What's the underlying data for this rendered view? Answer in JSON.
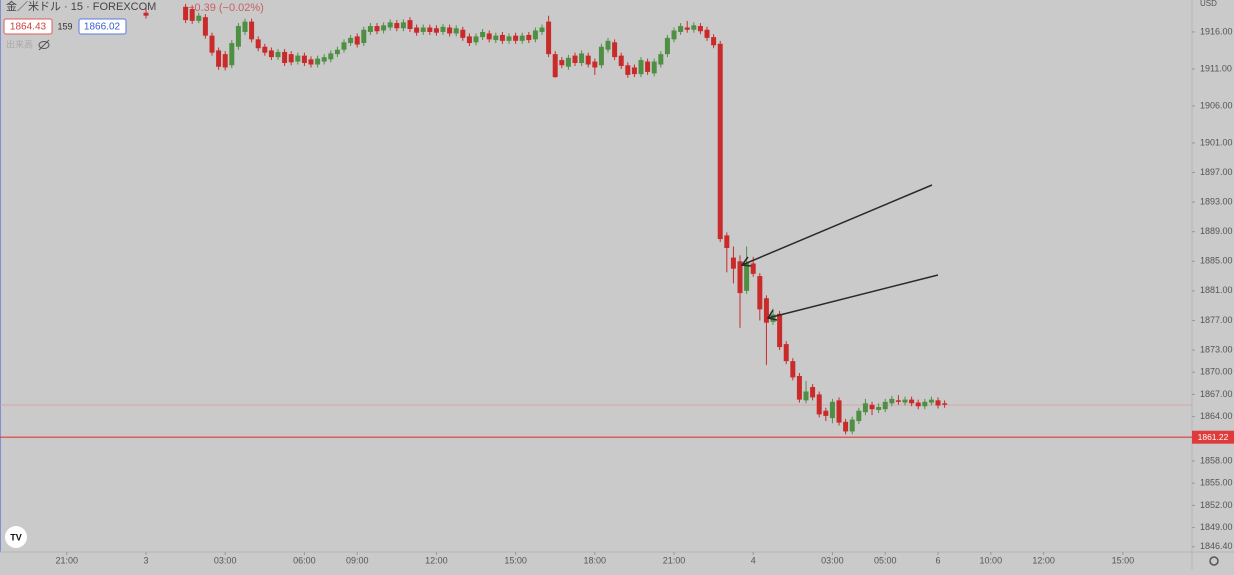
{
  "chart_data": {
    "type": "candlestick",
    "title": "金／米ドル · 15 · FOREXCOM",
    "change": "−0.39 (−0.02%)",
    "bid": 1864.43,
    "spread": 159,
    "ask": 1866.02,
    "indicator": "出来高",
    "currency": "USD",
    "current_price": 1861.22,
    "up_color": "#4f8f43",
    "down_color": "#c92a2a",
    "xlim": [
      -22.12,
      158.48
    ],
    "ylim": [
      1845.7,
      1920.32
    ],
    "xticks": [
      {
        "value": -12,
        "label": "21:00"
      },
      {
        "value": 0,
        "label": "3"
      },
      {
        "value": 12,
        "label": "03:00"
      },
      {
        "value": 24,
        "label": "06:00"
      },
      {
        "value": 32,
        "label": "09:00"
      },
      {
        "value": 44,
        "label": "12:00"
      },
      {
        "value": 56,
        "label": "15:00"
      },
      {
        "value": 68,
        "label": "18:00"
      },
      {
        "value": 80,
        "label": "21:00"
      },
      {
        "value": 92,
        "label": "4"
      },
      {
        "value": 104,
        "label": "03:00"
      },
      {
        "value": 112,
        "label": "05:00"
      },
      {
        "value": 120,
        "label": "6"
      },
      {
        "value": 128,
        "label": "10:00"
      },
      {
        "value": 136,
        "label": "12:00"
      },
      {
        "value": 148,
        "label": "15:00"
      }
    ],
    "yticks": [
      {
        "value": 1916,
        "label": "1916.00"
      },
      {
        "value": 1911,
        "label": "1911.00"
      },
      {
        "value": 1906,
        "label": "1906.00"
      },
      {
        "value": 1901,
        "label": "1901.00"
      },
      {
        "value": 1897,
        "label": "1897.00"
      },
      {
        "value": 1893,
        "label": "1893.00"
      },
      {
        "value": 1889,
        "label": "1889.00"
      },
      {
        "value": 1885,
        "label": "1885.00"
      },
      {
        "value": 1881,
        "label": "1881.00"
      },
      {
        "value": 1877,
        "label": "1877.00"
      },
      {
        "value": 1873,
        "label": "1873.00"
      },
      {
        "value": 1870,
        "label": "1870.00"
      },
      {
        "value": 1867,
        "label": "1867.00"
      },
      {
        "value": 1864,
        "label": "1864.00"
      },
      {
        "value": 1858,
        "label": "1858.00"
      },
      {
        "value": 1855,
        "label": "1855.00"
      },
      {
        "value": 1852,
        "label": "1852.00"
      },
      {
        "value": 1849,
        "label": "1849.00"
      },
      {
        "value": 1846.4,
        "label": "1846.40"
      }
    ],
    "candles": [
      [
        0,
        1918.6,
        1919.3,
        1917.8,
        1918.2
      ],
      [
        6,
        1919.4,
        1919.8,
        1917.2,
        1917.6
      ],
      [
        7,
        1919.1,
        1919.6,
        1917.1,
        1917.5
      ],
      [
        8,
        1917.5,
        1918.6,
        1917.2,
        1918.2
      ],
      [
        9,
        1918,
        1918.4,
        1915.1,
        1915.5
      ],
      [
        10,
        1915.5,
        1915.9,
        1912.8,
        1913.2
      ],
      [
        11,
        1913.5,
        1913.9,
        1910.9,
        1911.3
      ],
      [
        12,
        1913,
        1913.4,
        1910.8,
        1911.2
      ],
      [
        13,
        1911.5,
        1914.9,
        1911.1,
        1914.5
      ],
      [
        14,
        1914,
        1917.2,
        1913.6,
        1916.8
      ],
      [
        15,
        1916,
        1917.8,
        1915.6,
        1917.4
      ],
      [
        16,
        1917.4,
        1917.8,
        1914.6,
        1915
      ],
      [
        17,
        1915,
        1915.4,
        1913.4,
        1913.8
      ],
      [
        18,
        1914,
        1914.4,
        1912.8,
        1913.2
      ],
      [
        19,
        1913.5,
        1913.9,
        1912.2,
        1912.6
      ],
      [
        20,
        1912.6,
        1913.7,
        1912.2,
        1913.3
      ],
      [
        21,
        1913.3,
        1913.7,
        1911.4,
        1911.8
      ],
      [
        22,
        1913,
        1913.4,
        1911.5,
        1911.9
      ],
      [
        23,
        1912,
        1913.2,
        1911.6,
        1912.8
      ],
      [
        24,
        1912.8,
        1913.2,
        1911.4,
        1911.8
      ],
      [
        25,
        1912.3,
        1912.7,
        1911.2,
        1911.6
      ],
      [
        26,
        1911.6,
        1912.8,
        1911.2,
        1912.4
      ],
      [
        27,
        1912,
        1913,
        1911.6,
        1912.6
      ],
      [
        28,
        1912.3,
        1913.5,
        1911.9,
        1913.1
      ],
      [
        29,
        1913,
        1914,
        1912.6,
        1913.6
      ],
      [
        30,
        1913.6,
        1915,
        1913.2,
        1914.6
      ],
      [
        31,
        1914.5,
        1915.6,
        1914.1,
        1915.2
      ],
      [
        32,
        1915.4,
        1915.8,
        1913.9,
        1914.3
      ],
      [
        33,
        1914.5,
        1916.7,
        1914.1,
        1916.3
      ],
      [
        34,
        1916,
        1917.2,
        1915.6,
        1916.8
      ],
      [
        35,
        1916.8,
        1917.2,
        1915.7,
        1916.1
      ],
      [
        36,
        1916.2,
        1917.3,
        1915.8,
        1916.9
      ],
      [
        37,
        1916.6,
        1917.7,
        1916.2,
        1917.3
      ],
      [
        38,
        1917.2,
        1917.6,
        1916.1,
        1916.5
      ],
      [
        39,
        1916.5,
        1917.7,
        1916.1,
        1917.3
      ],
      [
        40,
        1917.6,
        1918,
        1916,
        1916.4
      ],
      [
        41,
        1916.6,
        1917,
        1915.5,
        1915.9
      ],
      [
        42,
        1916,
        1917,
        1915.6,
        1916.6
      ],
      [
        43,
        1916.6,
        1917,
        1915.6,
        1916
      ],
      [
        44,
        1916.5,
        1916.9,
        1915.5,
        1915.9
      ],
      [
        45,
        1916,
        1917.1,
        1915.6,
        1916.7
      ],
      [
        46,
        1916.6,
        1917,
        1915.4,
        1915.8
      ],
      [
        47,
        1915.8,
        1916.9,
        1915.4,
        1916.5
      ],
      [
        48,
        1916.3,
        1916.7,
        1914.8,
        1915.2
      ],
      [
        49,
        1915.4,
        1915.8,
        1914.1,
        1914.5
      ],
      [
        50,
        1914.6,
        1915.8,
        1914.2,
        1915.4
      ],
      [
        51,
        1915.3,
        1916.4,
        1914.9,
        1916
      ],
      [
        52,
        1915.8,
        1916.2,
        1914.6,
        1915
      ],
      [
        53,
        1914.9,
        1915.9,
        1914.5,
        1915.5
      ],
      [
        54,
        1915.6,
        1916,
        1914.4,
        1914.8
      ],
      [
        55,
        1914.8,
        1915.8,
        1914.4,
        1915.4
      ],
      [
        56,
        1915.5,
        1915.9,
        1914.4,
        1914.8
      ],
      [
        57,
        1914.8,
        1915.9,
        1914.4,
        1915.5
      ],
      [
        58,
        1915.6,
        1916,
        1914.5,
        1914.9
      ],
      [
        59,
        1915,
        1916.6,
        1914.6,
        1916.2
      ],
      [
        60,
        1916,
        1917,
        1915.6,
        1916.6
      ],
      [
        61,
        1917.4,
        1918.2,
        1912.6,
        1913
      ],
      [
        62,
        1913,
        1913.4,
        1909.8,
        1909.9
      ],
      [
        63,
        1912.2,
        1912.6,
        1911.1,
        1911.5
      ],
      [
        64,
        1911.3,
        1912.9,
        1910.9,
        1912.5
      ],
      [
        65,
        1912.8,
        1913.2,
        1911.4,
        1911.8
      ],
      [
        66,
        1911.8,
        1913.5,
        1911.4,
        1913.1
      ],
      [
        67,
        1912.8,
        1913.2,
        1911.2,
        1911.6
      ],
      [
        68,
        1912,
        1912.4,
        1910.2,
        1911.2
      ],
      [
        69,
        1911.5,
        1914.4,
        1911.1,
        1914
      ],
      [
        70,
        1913.6,
        1915.2,
        1913.2,
        1914.8
      ],
      [
        71,
        1914.6,
        1915,
        1912.2,
        1912.6
      ],
      [
        72,
        1912.8,
        1913.2,
        1911,
        1911.4
      ],
      [
        73,
        1911.5,
        1911.9,
        1909.8,
        1910.2
      ],
      [
        74,
        1911.2,
        1911.6,
        1909.9,
        1910.3
      ],
      [
        75,
        1910.3,
        1912.6,
        1909.9,
        1912.2
      ],
      [
        76,
        1912,
        1912.4,
        1910.2,
        1910.6
      ],
      [
        77,
        1910.4,
        1912.4,
        1910,
        1912
      ],
      [
        78,
        1911.6,
        1913.4,
        1911.2,
        1913
      ],
      [
        79,
        1913,
        1915.6,
        1912.6,
        1915.2
      ],
      [
        80,
        1915,
        1916.6,
        1914.6,
        1916.2
      ],
      [
        81,
        1916,
        1917.2,
        1915.6,
        1916.8
      ],
      [
        82,
        1916.6,
        1917.5,
        1915.9,
        1916.3
      ],
      [
        83,
        1916.3,
        1917.3,
        1915.9,
        1916.9
      ],
      [
        84,
        1916.8,
        1917.2,
        1915.7,
        1916.1
      ],
      [
        85,
        1916.3,
        1916.7,
        1914.8,
        1915.2
      ],
      [
        86,
        1915.3,
        1915.7,
        1913.8,
        1914.2
      ],
      [
        87,
        1914.4,
        1914.8,
        1887.6,
        1888
      ],
      [
        88,
        1888.5,
        1888.9,
        1883.5,
        1886.8
      ],
      [
        89,
        1885.5,
        1887,
        1882,
        1884
      ],
      [
        90,
        1885,
        1885.8,
        1876,
        1880.7
      ],
      [
        91,
        1881,
        1887,
        1880.6,
        1884.8
      ],
      [
        92,
        1884.7,
        1885.6,
        1882.9,
        1883.3
      ],
      [
        93,
        1883,
        1883.4,
        1877,
        1878.5
      ],
      [
        94,
        1880,
        1880.4,
        1871,
        1876.7
      ],
      [
        95,
        1876.8,
        1878.6,
        1876.4,
        1877.8
      ],
      [
        96,
        1877.9,
        1878.3,
        1873,
        1873.4
      ],
      [
        97,
        1873.8,
        1874.2,
        1871.1,
        1871.5
      ],
      [
        98,
        1871.5,
        1871.9,
        1868.9,
        1869.3
      ],
      [
        99,
        1869.5,
        1869.9,
        1865.9,
        1866.3
      ],
      [
        100,
        1866.2,
        1868.8,
        1865.8,
        1867.4
      ],
      [
        101,
        1868,
        1868.4,
        1866.2,
        1866.6
      ],
      [
        102,
        1867,
        1867.4,
        1863.9,
        1864.3
      ],
      [
        103,
        1864.8,
        1865.2,
        1863.4,
        1864.1
      ],
      [
        104,
        1863.8,
        1866.4,
        1863.1,
        1866
      ],
      [
        105,
        1866.2,
        1866.6,
        1862.8,
        1863.2
      ],
      [
        106,
        1863.3,
        1863.7,
        1861.6,
        1862
      ],
      [
        107,
        1862,
        1864,
        1861.6,
        1863.6
      ],
      [
        108,
        1863.4,
        1865.2,
        1863,
        1864.8
      ],
      [
        109,
        1864.6,
        1866.4,
        1864.2,
        1865.8
      ],
      [
        110,
        1865.6,
        1866,
        1864.2,
        1865
      ],
      [
        111,
        1864.9,
        1865.8,
        1864.5,
        1865.3
      ],
      [
        112,
        1865,
        1866.4,
        1864.6,
        1866
      ],
      [
        113,
        1865.8,
        1866.8,
        1865.4,
        1866.4
      ],
      [
        114,
        1866.2,
        1866.9,
        1865.6,
        1866
      ],
      [
        115,
        1865.9,
        1866.7,
        1865.5,
        1866.3
      ],
      [
        116,
        1866.3,
        1866.7,
        1865.4,
        1865.8
      ],
      [
        117,
        1865.9,
        1866.3,
        1865,
        1865.4
      ],
      [
        118,
        1865.4,
        1866.4,
        1865,
        1866
      ],
      [
        119,
        1865.9,
        1866.7,
        1865.5,
        1866.3
      ],
      [
        120,
        1866.2,
        1866.6,
        1865.1,
        1865.5
      ],
      [
        121,
        1865.8,
        1866.2,
        1865.2,
        1865.6
      ]
    ]
  }
}
